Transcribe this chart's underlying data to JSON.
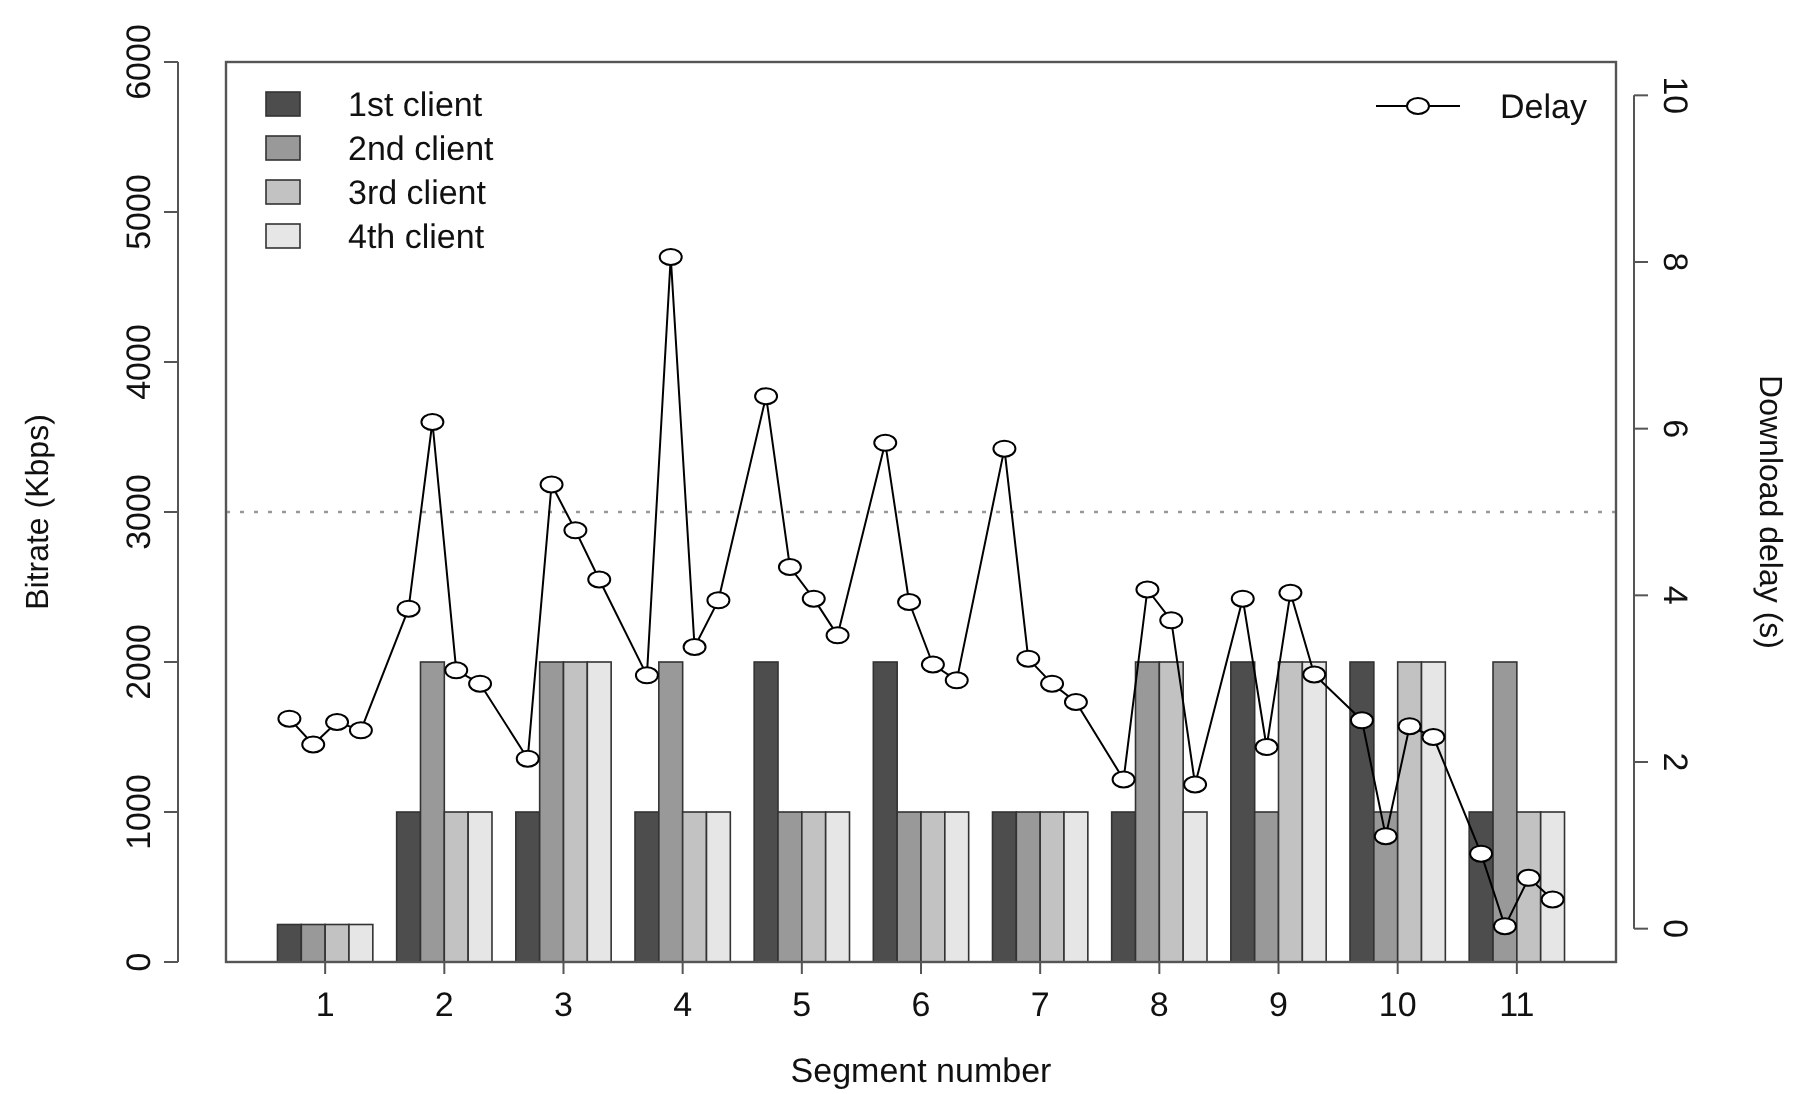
{
  "chart_data": {
    "type": "bar",
    "xlabel": "Segment number",
    "ylabel": "Bitrate (Kbps)",
    "y2label": "Download delay (s)",
    "x": [
      1,
      2,
      3,
      4,
      5,
      6,
      7,
      8,
      9,
      10,
      11
    ],
    "xlim": [
      0.168,
      11.832
    ],
    "xticks": [
      1,
      2,
      3,
      4,
      5,
      6,
      7,
      8,
      9,
      10,
      11
    ],
    "ylim": [
      0,
      6000
    ],
    "yticks": [
      0,
      1000,
      2000,
      3000,
      4000,
      5000,
      6000
    ],
    "y2lim": [
      -0.4,
      10.4
    ],
    "y2ticks": [
      0,
      2,
      4,
      6,
      8,
      10
    ],
    "series": [
      {
        "name": "1st client",
        "color": "#4d4d4d",
        "values": [
          250,
          1000,
          1000,
          1000,
          2000,
          2000,
          1000,
          1000,
          2000,
          2000,
          1000
        ]
      },
      {
        "name": "2nd client",
        "color": "#999999",
        "values": [
          250,
          2000,
          2000,
          2000,
          1000,
          1000,
          1000,
          2000,
          1000,
          1000,
          2000
        ]
      },
      {
        "name": "3rd client",
        "color": "#c2c2c2",
        "values": [
          250,
          1000,
          2000,
          1000,
          1000,
          1000,
          1000,
          2000,
          2000,
          2000,
          1000
        ]
      },
      {
        "name": "4th client",
        "color": "#e6e6e6",
        "values": [
          250,
          1000,
          2000,
          1000,
          1000,
          1000,
          1000,
          1000,
          2000,
          2000,
          1000
        ]
      },
      {
        "name": "Delay",
        "type": "line",
        "axis": "y2",
        "color": "#000000",
        "marker": "circle",
        "x": [
          0.7,
          0.9,
          1.1,
          1.3,
          1.7,
          1.9,
          2.1,
          2.3,
          2.7,
          2.9,
          3.1,
          3.3,
          3.7,
          3.9,
          4.1,
          4.3,
          4.7,
          4.9,
          5.1,
          5.3,
          5.7,
          5.9,
          6.1,
          6.3,
          6.7,
          6.9,
          7.1,
          7.3,
          7.7,
          7.9,
          8.1,
          8.3,
          8.7,
          8.9,
          9.1,
          9.3,
          9.7,
          9.9,
          10.1,
          10.3,
          10.7,
          10.9,
          11.1,
          11.3
        ],
        "values": [
          2.52,
          2.21,
          2.48,
          2.38,
          3.84,
          6.08,
          3.1,
          2.94,
          2.04,
          5.33,
          4.78,
          4.19,
          3.04,
          8.06,
          3.38,
          3.94,
          6.39,
          4.34,
          3.96,
          3.52,
          5.83,
          3.92,
          3.17,
          2.98,
          5.76,
          3.24,
          2.94,
          2.72,
          1.79,
          4.07,
          3.7,
          1.73,
          3.96,
          2.18,
          4.03,
          3.05,
          2.5,
          1.11,
          2.43,
          2.3,
          0.9,
          0.03,
          0.61,
          0.35
        ]
      }
    ],
    "ref_lines": [
      {
        "axis": "y",
        "value": 3000,
        "color": "#999999",
        "line_style": "dotted"
      }
    ],
    "legend": "top left",
    "grid": false
  }
}
